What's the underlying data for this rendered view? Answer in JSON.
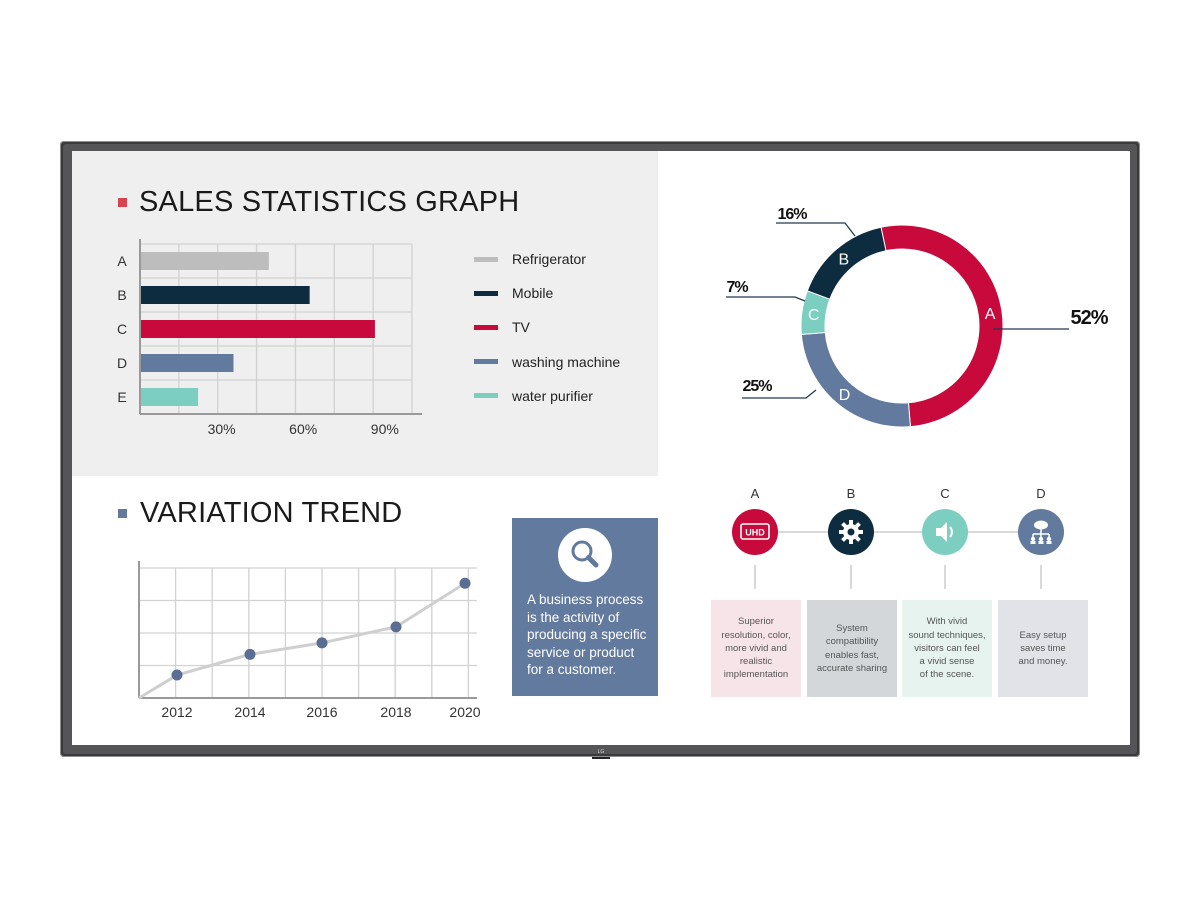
{
  "colors": {
    "refrigerator": "#bdbdbd",
    "mobile": "#0e2c40",
    "tv": "#c7093b",
    "washing_machine": "#637a9f",
    "water_purifier": "#7ccfc0",
    "bullet_red": "#d9434d",
    "bullet_blue": "#637a9f"
  },
  "sales": {
    "title": "SALES STATISTICS GRAPH",
    "legend": [
      "Refrigerator",
      "Mobile",
      "TV",
      "washing machine",
      "water purifier"
    ]
  },
  "variation": {
    "title": "VARIATION TREND"
  },
  "info": {
    "icon": "magnifier-icon",
    "text": "A business process is the activity of producing a specific service or product for a customer."
  },
  "donut_labels": {
    "a": "52%",
    "b": "16%",
    "c": "7%",
    "d": "25%"
  },
  "features": [
    {
      "letter": "A",
      "icon": "uhd-icon",
      "icon_text": "UHD",
      "color": "#c7093b",
      "card_bg": "#f7e4e9",
      "text": "Superior\nresolution, color,\nmore vivid and\nrealistic\nimplementation"
    },
    {
      "letter": "B",
      "icon": "gear-icon",
      "color": "#0e2c40",
      "card_bg": "#d3d7da",
      "text": "System\ncompatibility\nenables fast,\naccurate sharing"
    },
    {
      "letter": "C",
      "icon": "speaker-icon",
      "color": "#7ccfc0",
      "card_bg": "#e6f3ef",
      "text": "With vivid\nsound techniques,\nvisitors can feel\na vivid sense\nof the scene."
    },
    {
      "letter": "D",
      "icon": "network-icon",
      "color": "#637a9f",
      "card_bg": "#e1e3e8",
      "text": "Easy setup\nsaves time\nand money."
    }
  ],
  "brand": {
    "logo": "LG"
  },
  "chart_data": [
    {
      "type": "bar",
      "orientation": "horizontal",
      "title": "SALES STATISTICS GRAPH",
      "categories": [
        "A",
        "B",
        "C",
        "D",
        "E"
      ],
      "values": [
        47,
        62,
        86,
        34,
        21
      ],
      "series_names": [
        "Refrigerator",
        "Mobile",
        "TV",
        "washing machine",
        "water purifier"
      ],
      "x_ticks": [
        "30%",
        "60%",
        "90%"
      ],
      "xlim": [
        0,
        100
      ],
      "grid": true,
      "legend_position": "right"
    },
    {
      "type": "line",
      "title": "VARIATION TREND",
      "x": [
        2012,
        2014,
        2016,
        2018,
        2020
      ],
      "values": [
        20,
        38,
        48,
        62,
        100
      ],
      "ylim": [
        0,
        115
      ],
      "grid": true
    },
    {
      "type": "pie",
      "style": "donut",
      "labels": [
        "A",
        "B",
        "C",
        "D"
      ],
      "values": [
        52,
        16,
        7,
        25
      ],
      "value_labels": [
        "52%",
        "16%",
        "7%",
        "25%"
      ]
    }
  ]
}
